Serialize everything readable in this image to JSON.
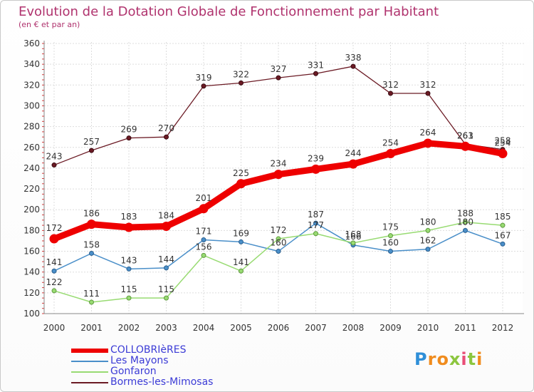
{
  "title": "Evolution de la Dotation Globale de Fonctionnement par Habitant",
  "subtitle": "(en € et par an)",
  "logo": {
    "letters": [
      "P",
      "r",
      "o",
      "x",
      "i",
      "t",
      "i"
    ],
    "colors": [
      "#2f8fd8",
      "#f08c1e",
      "#f08c1e",
      "#8cc63f",
      "#e94e77",
      "#8cc63f",
      "#f08c1e"
    ]
  },
  "chart_data": {
    "type": "line",
    "title": "Evolution de la Dotation Globale de Fonctionnement par Habitant",
    "subtitle": "(en € et par an)",
    "xlabel": "",
    "ylabel": "",
    "ylim": [
      100,
      360
    ],
    "yticks": [
      "100",
      "120",
      "140",
      "160",
      "180",
      "200",
      "220",
      "240",
      "260",
      "280",
      "300",
      "320",
      "340",
      "360"
    ],
    "categories": [
      "2000",
      "2001",
      "2002",
      "2003",
      "2004",
      "2005",
      "2006",
      "2007",
      "2008",
      "2009",
      "2010",
      "2011",
      "2012"
    ],
    "grid": true,
    "legend_position": "bottom-left",
    "series": [
      {
        "name": "COLLOBRIèRES",
        "color": "#ee0000",
        "values": [
          172,
          186,
          183,
          184,
          201,
          225,
          234,
          239,
          244,
          254,
          264,
          261,
          254
        ]
      },
      {
        "name": "Les Mayons",
        "color": "#4a8fc9",
        "values": [
          141,
          158,
          143,
          144,
          171,
          169,
          160,
          187,
          166,
          160,
          162,
          180,
          167
        ]
      },
      {
        "name": "Gonfaron",
        "color": "#98db72",
        "values": [
          122,
          111,
          115,
          115,
          156,
          141,
          172,
          177,
          168,
          175,
          180,
          188,
          185
        ]
      },
      {
        "name": "Bormes-les-Mimosas",
        "color": "#6b1a24",
        "values": [
          243,
          257,
          269,
          270,
          319,
          322,
          327,
          331,
          338,
          312,
          312,
          263,
          258
        ]
      }
    ]
  }
}
